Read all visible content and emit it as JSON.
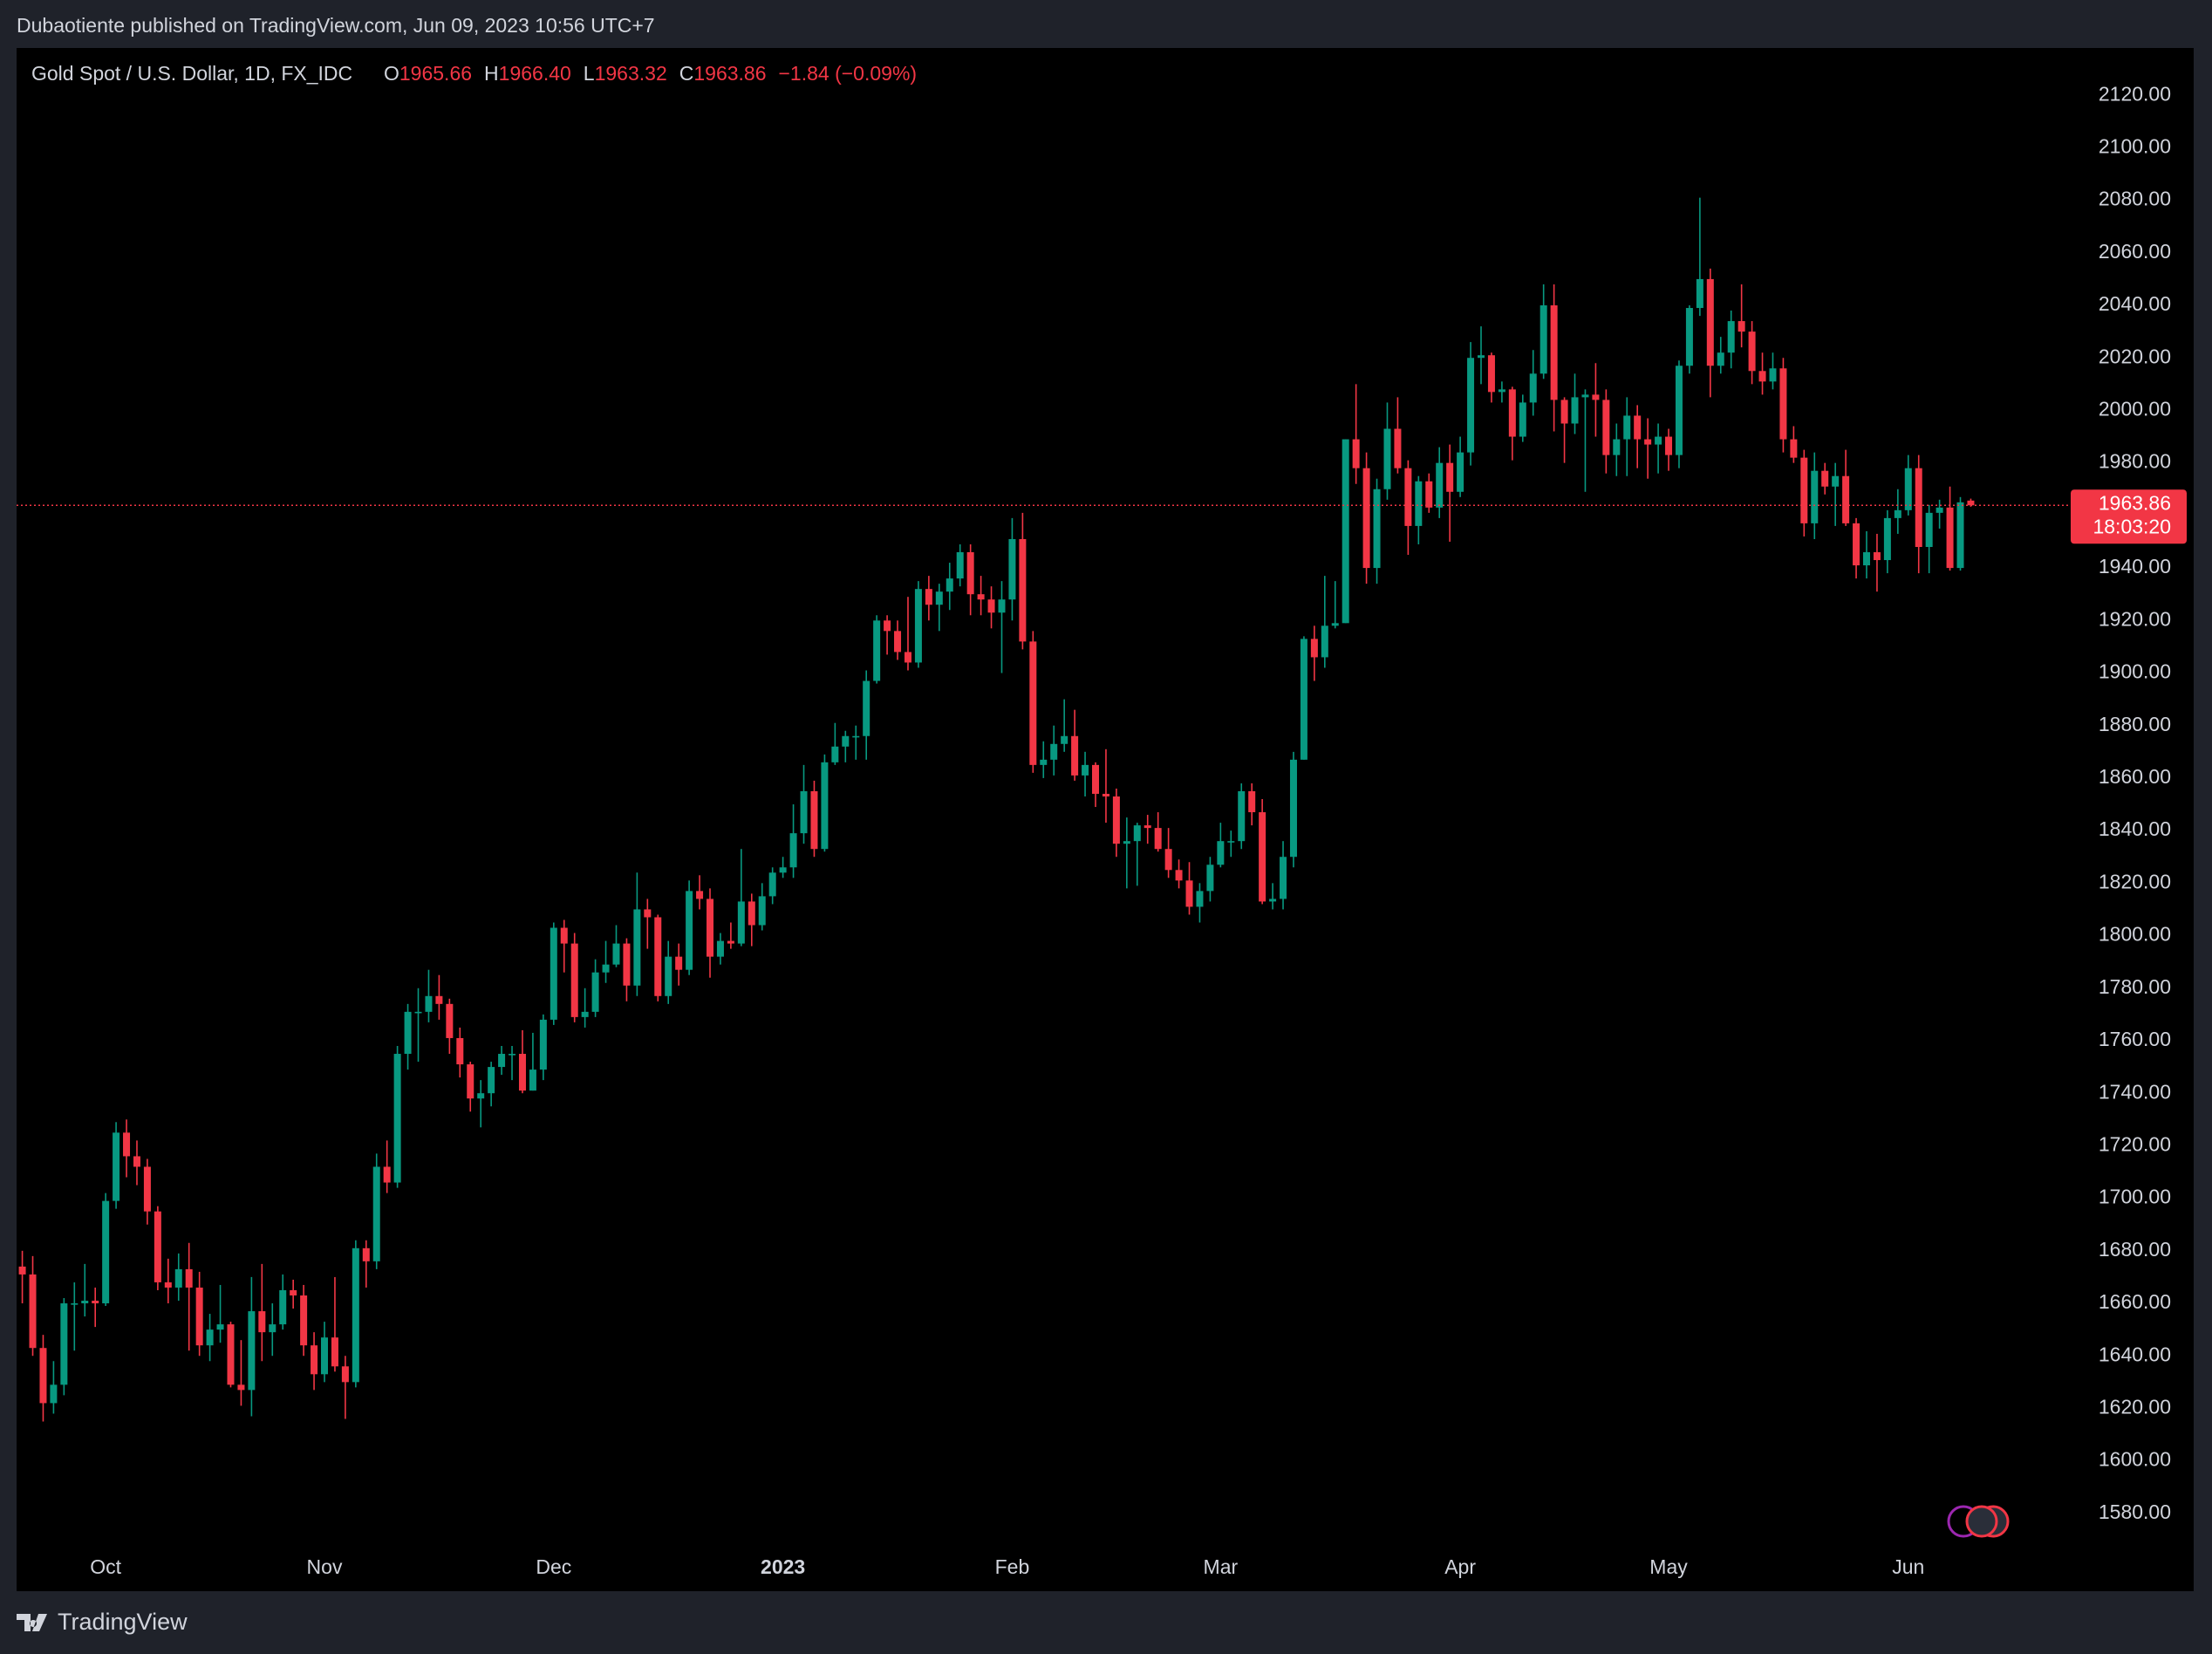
{
  "credit": "Dubaotiente published on TradingView.com, Jun 09, 2023 10:56 UTC+7",
  "footer": "TradingView",
  "chart_data": {
    "type": "candlestick",
    "title": "Gold Spot / U.S. Dollar, 1D, FX_IDC",
    "legend_values": [
      {
        "key": "O",
        "value": "1965.66"
      },
      {
        "key": "H",
        "value": "1966.40"
      },
      {
        "key": "L",
        "value": "1963.32"
      },
      {
        "key": "C",
        "value": "1963.86"
      }
    ],
    "change": "−1.84 (−0.09%)",
    "last_price": 1963.86,
    "countdown": "18:03:20",
    "up_color": "#089981",
    "down_color": "#f23645",
    "grid": false,
    "xlim": [
      -0.55,
      195.5
    ],
    "xticks": [
      {
        "value": 8,
        "label": "Oct"
      },
      {
        "value": 29,
        "label": "Nov"
      },
      {
        "value": 51,
        "label": "Dec"
      },
      {
        "value": 73,
        "label": "2023"
      },
      {
        "value": 95,
        "label": "Feb"
      },
      {
        "value": 115,
        "label": "Mar"
      },
      {
        "value": 138,
        "label": "Apr"
      },
      {
        "value": 158,
        "label": "May"
      },
      {
        "value": 181,
        "label": "Jun"
      }
    ],
    "ylim": [
      1568,
      2137
    ],
    "yticks": [
      {
        "value": 1580,
        "label": "1580.00"
      },
      {
        "value": 1600,
        "label": "1600.00"
      },
      {
        "value": 1620,
        "label": "1620.00"
      },
      {
        "value": 1640,
        "label": "1640.00"
      },
      {
        "value": 1660,
        "label": "1660.00"
      },
      {
        "value": 1680,
        "label": "1680.00"
      },
      {
        "value": 1700,
        "label": "1700.00"
      },
      {
        "value": 1720,
        "label": "1720.00"
      },
      {
        "value": 1740,
        "label": "1740.00"
      },
      {
        "value": 1760,
        "label": "1760.00"
      },
      {
        "value": 1780,
        "label": "1780.00"
      },
      {
        "value": 1800,
        "label": "1800.00"
      },
      {
        "value": 1820,
        "label": "1820.00"
      },
      {
        "value": 1840,
        "label": "1840.00"
      },
      {
        "value": 1860,
        "label": "1860.00"
      },
      {
        "value": 1880,
        "label": "1880.00"
      },
      {
        "value": 1900,
        "label": "1900.00"
      },
      {
        "value": 1920,
        "label": "1920.00"
      },
      {
        "value": 1940,
        "label": "1940.00"
      },
      {
        "value": 1960,
        "label": "1960.00"
      },
      {
        "value": 1980,
        "label": "1980.00"
      },
      {
        "value": 2000,
        "label": "2000.00"
      },
      {
        "value": 2020,
        "label": "2020.00"
      },
      {
        "value": 2040,
        "label": "2040.00"
      },
      {
        "value": 2060,
        "label": "2060.00"
      },
      {
        "value": 2080,
        "label": "2080.00"
      },
      {
        "value": 2100,
        "label": "2100.00"
      },
      {
        "value": 2120,
        "label": "2120.00"
      }
    ],
    "ohlc": [
      [
        1674,
        1680,
        1660,
        1671
      ],
      [
        1671,
        1678,
        1640,
        1643
      ],
      [
        1643,
        1648,
        1615,
        1622
      ],
      [
        1622,
        1638,
        1618,
        1629
      ],
      [
        1629,
        1662,
        1625,
        1660
      ],
      [
        1660,
        1668,
        1642,
        1660
      ],
      [
        1660,
        1675,
        1655,
        1661
      ],
      [
        1661,
        1666,
        1651,
        1660
      ],
      [
        1660,
        1702,
        1659,
        1699
      ],
      [
        1699,
        1729,
        1696,
        1725
      ],
      [
        1725,
        1730,
        1708,
        1716
      ],
      [
        1716,
        1722,
        1705,
        1712
      ],
      [
        1712,
        1715,
        1690,
        1695
      ],
      [
        1695,
        1697,
        1665,
        1668
      ],
      [
        1668,
        1677,
        1660,
        1666
      ],
      [
        1666,
        1679,
        1661,
        1673
      ],
      [
        1673,
        1683,
        1642,
        1666
      ],
      [
        1666,
        1672,
        1640,
        1644
      ],
      [
        1644,
        1656,
        1638,
        1650
      ],
      [
        1650,
        1667,
        1645,
        1652
      ],
      [
        1652,
        1653,
        1628,
        1629
      ],
      [
        1629,
        1646,
        1621,
        1627
      ],
      [
        1627,
        1670,
        1617,
        1657
      ],
      [
        1657,
        1675,
        1638,
        1649
      ],
      [
        1649,
        1660,
        1640,
        1652
      ],
      [
        1652,
        1671,
        1650,
        1665
      ],
      [
        1665,
        1669,
        1658,
        1663
      ],
      [
        1663,
        1667,
        1640,
        1644
      ],
      [
        1644,
        1649,
        1627,
        1633
      ],
      [
        1633,
        1653,
        1630,
        1647
      ],
      [
        1647,
        1670,
        1634,
        1636
      ],
      [
        1636,
        1640,
        1616,
        1630
      ],
      [
        1630,
        1684,
        1628,
        1681
      ],
      [
        1681,
        1684,
        1666,
        1676
      ],
      [
        1676,
        1717,
        1673,
        1712
      ],
      [
        1712,
        1722,
        1702,
        1706
      ],
      [
        1706,
        1758,
        1704,
        1755
      ],
      [
        1755,
        1774,
        1749,
        1771
      ],
      [
        1771,
        1780,
        1752,
        1771
      ],
      [
        1771,
        1787,
        1767,
        1777
      ],
      [
        1777,
        1785,
        1768,
        1774
      ],
      [
        1774,
        1776,
        1755,
        1761
      ],
      [
        1761,
        1765,
        1746,
        1751
      ],
      [
        1751,
        1752,
        1733,
        1738
      ],
      [
        1738,
        1745,
        1727,
        1740
      ],
      [
        1740,
        1752,
        1735,
        1750
      ],
      [
        1750,
        1758,
        1747,
        1755
      ],
      [
        1755,
        1758,
        1745,
        1755
      ],
      [
        1755,
        1764,
        1740,
        1741
      ],
      [
        1741,
        1763,
        1741,
        1749
      ],
      [
        1749,
        1770,
        1745,
        1768
      ],
      [
        1768,
        1805,
        1766,
        1803
      ],
      [
        1803,
        1806,
        1786,
        1797
      ],
      [
        1797,
        1801,
        1767,
        1769
      ],
      [
        1769,
        1780,
        1765,
        1771
      ],
      [
        1771,
        1791,
        1769,
        1786
      ],
      [
        1786,
        1798,
        1782,
        1789
      ],
      [
        1789,
        1804,
        1788,
        1797
      ],
      [
        1797,
        1799,
        1775,
        1781
      ],
      [
        1781,
        1824,
        1777,
        1810
      ],
      [
        1810,
        1814,
        1795,
        1807
      ],
      [
        1807,
        1808,
        1775,
        1777
      ],
      [
        1777,
        1798,
        1774,
        1792
      ],
      [
        1792,
        1797,
        1781,
        1787
      ],
      [
        1787,
        1821,
        1785,
        1817
      ],
      [
        1817,
        1823,
        1810,
        1814
      ],
      [
        1814,
        1818,
        1784,
        1792
      ],
      [
        1792,
        1801,
        1789,
        1798
      ],
      [
        1798,
        1805,
        1795,
        1797
      ],
      [
        1797,
        1833,
        1796,
        1813
      ],
      [
        1813,
        1816,
        1796,
        1804
      ],
      [
        1804,
        1820,
        1802,
        1815
      ],
      [
        1815,
        1826,
        1812,
        1824
      ],
      [
        1824,
        1830,
        1822,
        1826
      ],
      [
        1826,
        1850,
        1822,
        1839
      ],
      [
        1839,
        1865,
        1835,
        1855
      ],
      [
        1855,
        1859,
        1830,
        1833
      ],
      [
        1833,
        1869,
        1832,
        1866
      ],
      [
        1866,
        1881,
        1865,
        1872
      ],
      [
        1872,
        1878,
        1866,
        1876
      ],
      [
        1876,
        1880,
        1867,
        1876
      ],
      [
        1876,
        1901,
        1867,
        1897
      ],
      [
        1897,
        1922,
        1896,
        1920
      ],
      [
        1920,
        1922,
        1907,
        1916
      ],
      [
        1916,
        1920,
        1905,
        1908
      ],
      [
        1908,
        1929,
        1901,
        1904
      ],
      [
        1904,
        1935,
        1902,
        1932
      ],
      [
        1932,
        1937,
        1920,
        1926
      ],
      [
        1926,
        1934,
        1916,
        1931
      ],
      [
        1931,
        1942,
        1924,
        1936
      ],
      [
        1936,
        1949,
        1933,
        1946
      ],
      [
        1946,
        1949,
        1922,
        1930
      ],
      [
        1930,
        1937,
        1922,
        1928
      ],
      [
        1928,
        1933,
        1917,
        1923
      ],
      [
        1923,
        1935,
        1900,
        1928
      ],
      [
        1928,
        1959,
        1920,
        1951
      ],
      [
        1951,
        1961,
        1909,
        1912
      ],
      [
        1912,
        1916,
        1862,
        1865
      ],
      [
        1865,
        1874,
        1860,
        1867
      ],
      [
        1867,
        1880,
        1861,
        1873
      ],
      [
        1873,
        1890,
        1870,
        1876
      ],
      [
        1876,
        1886,
        1859,
        1861
      ],
      [
        1861,
        1870,
        1853,
        1865
      ],
      [
        1865,
        1866,
        1849,
        1854
      ],
      [
        1854,
        1871,
        1843,
        1853
      ],
      [
        1853,
        1856,
        1830,
        1835
      ],
      [
        1835,
        1845,
        1818,
        1836
      ],
      [
        1836,
        1843,
        1819,
        1842
      ],
      [
        1842,
        1846,
        1835,
        1841
      ],
      [
        1841,
        1847,
        1832,
        1833
      ],
      [
        1833,
        1841,
        1822,
        1825
      ],
      [
        1825,
        1829,
        1818,
        1821
      ],
      [
        1821,
        1828,
        1808,
        1811
      ],
      [
        1811,
        1820,
        1805,
        1817
      ],
      [
        1817,
        1830,
        1813,
        1827
      ],
      [
        1827,
        1843,
        1826,
        1836
      ],
      [
        1836,
        1840,
        1830,
        1836
      ],
      [
        1836,
        1858,
        1833,
        1855
      ],
      [
        1855,
        1858,
        1842,
        1847
      ],
      [
        1847,
        1852,
        1812,
        1813
      ],
      [
        1813,
        1820,
        1810,
        1814
      ],
      [
        1814,
        1836,
        1810,
        1830
      ],
      [
        1830,
        1870,
        1826,
        1867
      ],
      [
        1867,
        1914,
        1867,
        1913
      ],
      [
        1913,
        1918,
        1897,
        1906
      ],
      [
        1906,
        1937,
        1902,
        1918
      ],
      [
        1918,
        1935,
        1917,
        1919
      ],
      [
        1919,
        1989,
        1919,
        1989
      ],
      [
        1989,
        2010,
        1972,
        1978
      ],
      [
        1978,
        1984,
        1934,
        1940
      ],
      [
        1940,
        1974,
        1934,
        1970
      ],
      [
        1970,
        2003,
        1966,
        1993
      ],
      [
        1993,
        2005,
        1976,
        1978
      ],
      [
        1978,
        1981,
        1945,
        1956
      ],
      [
        1956,
        1975,
        1949,
        1973
      ],
      [
        1973,
        1976,
        1961,
        1963
      ],
      [
        1963,
        1986,
        1959,
        1980
      ],
      [
        1980,
        1987,
        1950,
        1969
      ],
      [
        1969,
        1990,
        1967,
        1984
      ],
      [
        1984,
        2026,
        1979,
        2020
      ],
      [
        2020,
        2032,
        2010,
        2021
      ],
      [
        2021,
        2022,
        2003,
        2007
      ],
      [
        2007,
        2011,
        2003,
        2008
      ],
      [
        2008,
        2009,
        1981,
        1990
      ],
      [
        1990,
        2006,
        1988,
        2003
      ],
      [
        2003,
        2023,
        1998,
        2014
      ],
      [
        2014,
        2048,
        2012,
        2040
      ],
      [
        2040,
        2048,
        1992,
        2004
      ],
      [
        2004,
        2005,
        1980,
        1995
      ],
      [
        1995,
        2014,
        1991,
        2005
      ],
      [
        2005,
        2008,
        1969,
        2006
      ],
      [
        2006,
        2018,
        1990,
        2004
      ],
      [
        2004,
        2008,
        1976,
        1983
      ],
      [
        1983,
        1995,
        1975,
        1989
      ],
      [
        1989,
        2005,
        1975,
        1998
      ],
      [
        1998,
        2002,
        1978,
        1989
      ],
      [
        1989,
        1997,
        1974,
        1987
      ],
      [
        1987,
        1995,
        1976,
        1990
      ],
      [
        1990,
        1993,
        1977,
        1983
      ],
      [
        1983,
        2019,
        1978,
        2017
      ],
      [
        2017,
        2040,
        2014,
        2039
      ],
      [
        2039,
        2081,
        2036,
        2050
      ],
      [
        2050,
        2054,
        2005,
        2017
      ],
      [
        2017,
        2028,
        2014,
        2022
      ],
      [
        2022,
        2038,
        2016,
        2034
      ],
      [
        2034,
        2048,
        2024,
        2030
      ],
      [
        2030,
        2034,
        2010,
        2015
      ],
      [
        2015,
        2022,
        2006,
        2011
      ],
      [
        2011,
        2022,
        2008,
        2016
      ],
      [
        2016,
        2020,
        1984,
        1989
      ],
      [
        1989,
        1994,
        1980,
        1982
      ],
      [
        1982,
        1985,
        1952,
        1957
      ],
      [
        1957,
        1984,
        1951,
        1977
      ],
      [
        1977,
        1980,
        1968,
        1971
      ],
      [
        1971,
        1980,
        1956,
        1975
      ],
      [
        1975,
        1985,
        1956,
        1957
      ],
      [
        1957,
        1959,
        1936,
        1941
      ],
      [
        1941,
        1954,
        1936,
        1946
      ],
      [
        1946,
        1953,
        1931,
        1943
      ],
      [
        1943,
        1962,
        1938,
        1959
      ],
      [
        1959,
        1970,
        1953,
        1962
      ],
      [
        1962,
        1983,
        1960,
        1978
      ],
      [
        1978,
        1983,
        1938,
        1948
      ],
      [
        1948,
        1964,
        1938,
        1961
      ],
      [
        1961,
        1966,
        1955,
        1963
      ],
      [
        1963,
        1971,
        1939,
        1940
      ],
      [
        1940,
        1967,
        1939,
        1965
      ],
      [
        1965.66,
        1966.4,
        1963.32,
        1963.86
      ]
    ]
  }
}
